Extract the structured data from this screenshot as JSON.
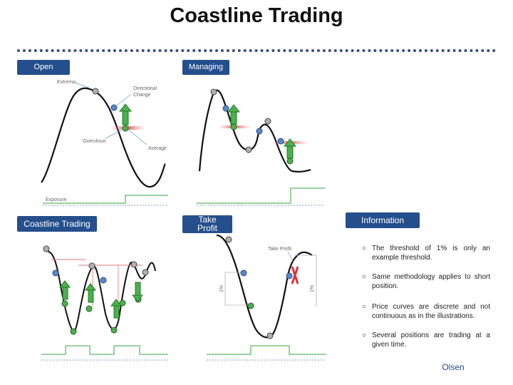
{
  "header": {
    "title": "Coastline Trading"
  },
  "tags": {
    "open": "Open",
    "managing": "Managing",
    "coastline": "Coastline Trading",
    "take_profit": "Take Profit",
    "information": "Information"
  },
  "labels": {
    "extrema": "Extrema",
    "directional_change": "Directional Change",
    "overshoot": "Overshoot",
    "average": "Average",
    "exposure": "Exposure",
    "take_profit_small": "Take Profit",
    "threshold_left": "1%",
    "threshold_right": "1%"
  },
  "information": [
    "The threshold of 1% is only an example threshold.",
    "Same methodology applies to short position.",
    "Price curves are discrete and not continuous as in the illustrations.",
    "Several positions are trading at a given time."
  ],
  "footer": {
    "author": "Olsen"
  },
  "colors": {
    "tag_bg": "#244f8c",
    "curve": "#111111",
    "marker_grey": "#b0b0b0",
    "marker_blue": "#5b86c8",
    "marker_green": "#4caf50",
    "arrow_green": "#3dbb3d",
    "exposure_line": "#79c37f",
    "dashed_line": "#5b7fb8",
    "close_red": "#e0303a"
  }
}
